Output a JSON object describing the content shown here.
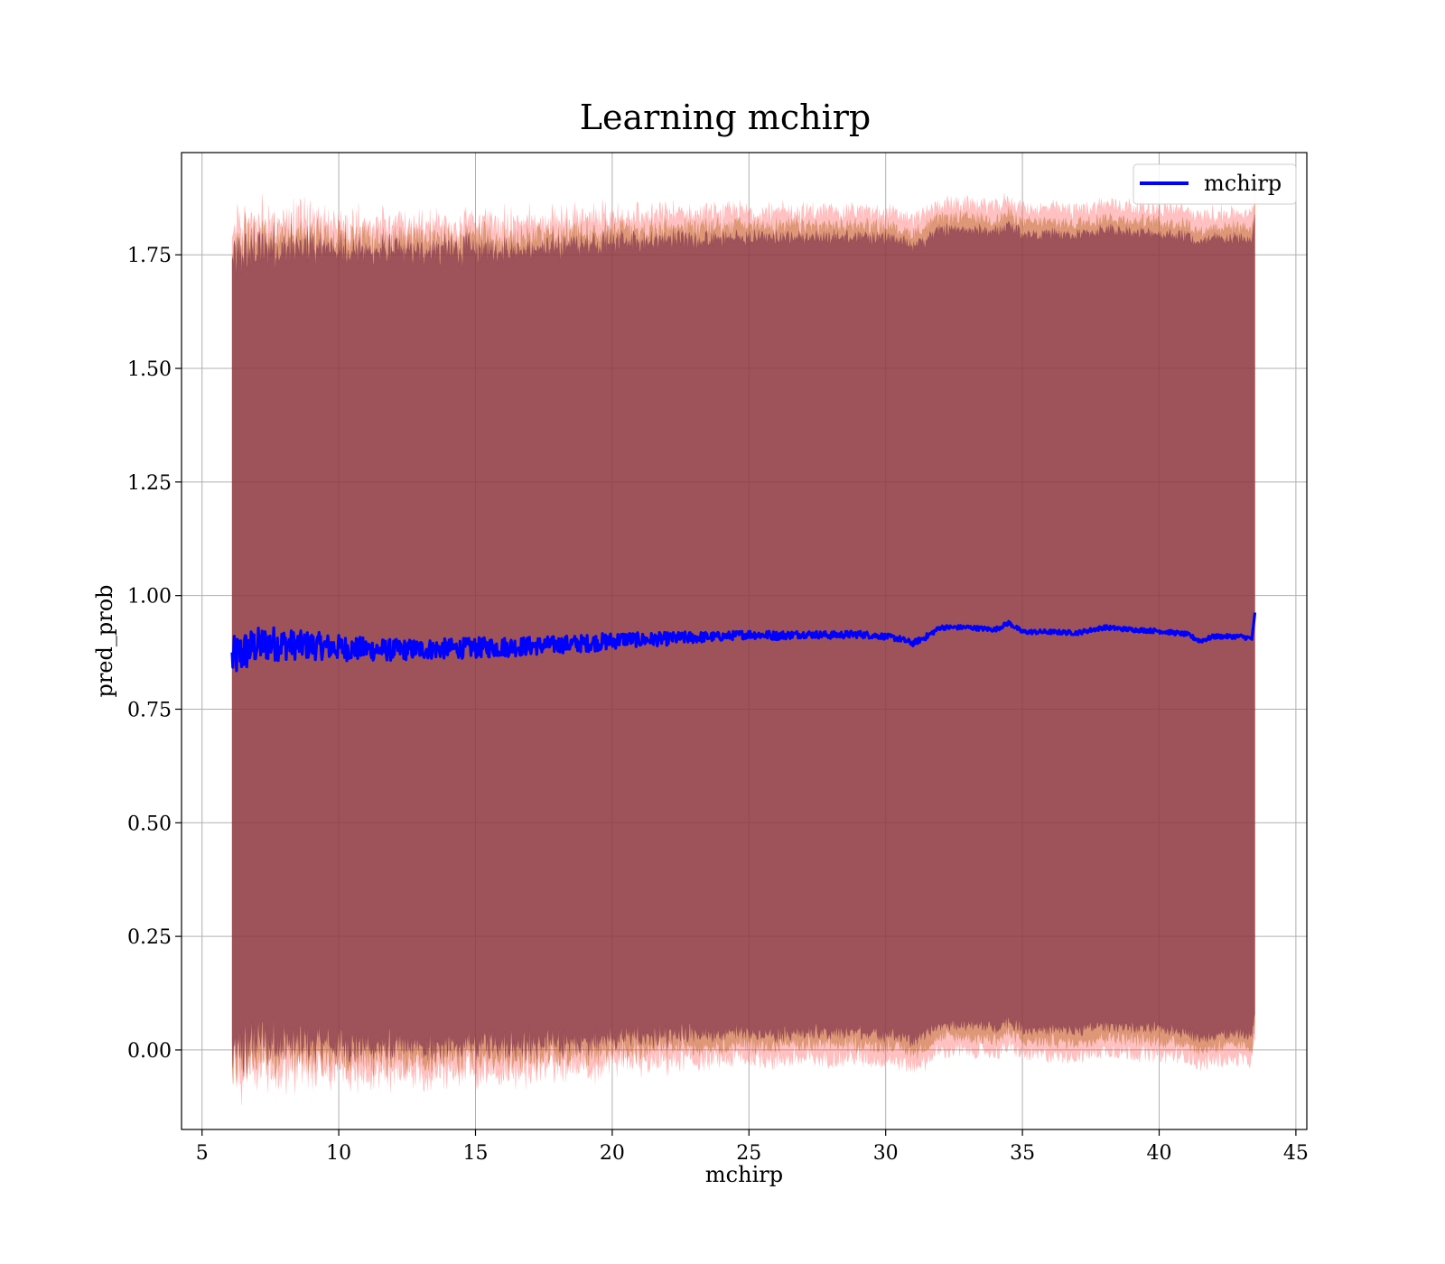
{
  "chart_data": {
    "type": "line",
    "title": "Learning mchirp",
    "xlabel": "mchirp",
    "ylabel": "pred_prob",
    "xlim": [
      4.25,
      45.4
    ],
    "ylim": [
      -0.175,
      1.975
    ],
    "xticks": [
      5,
      10,
      15,
      20,
      25,
      30,
      35,
      40,
      45
    ],
    "yticks": [
      0.0,
      0.25,
      0.5,
      0.75,
      1.0,
      1.25,
      1.5,
      1.75
    ],
    "ytick_labels": [
      "0.00",
      "0.25",
      "0.50",
      "0.75",
      "1.00",
      "1.25",
      "1.50",
      "1.75"
    ],
    "grid": true,
    "legend_position": "top-right",
    "colors": {
      "line": "#0000ff",
      "band_outer": "#ff4d4d",
      "band_mid": "#b5651d",
      "band_inner": "#7a2e4a",
      "grid": "#b0b0b0"
    },
    "series": [
      {
        "name": "mchirp",
        "x": [
          6.1,
          6.5,
          7.0,
          7.5,
          8.0,
          8.5,
          9.0,
          9.5,
          10.0,
          11.0,
          12.0,
          13.0,
          14.0,
          15.0,
          16.0,
          17.0,
          18.0,
          19.0,
          20.0,
          20.5,
          21.0,
          22.0,
          23.0,
          24.0,
          25.0,
          26.0,
          27.0,
          28.0,
          29.0,
          30.0,
          30.5,
          31.0,
          31.5,
          32.0,
          33.0,
          34.0,
          34.5,
          35.0,
          36.0,
          37.0,
          38.0,
          39.0,
          40.0,
          41.0,
          41.5,
          42.0,
          43.0,
          43.4,
          43.5
        ],
        "y": [
          0.86,
          0.875,
          0.89,
          0.895,
          0.893,
          0.891,
          0.89,
          0.888,
          0.885,
          0.882,
          0.88,
          0.882,
          0.883,
          0.885,
          0.887,
          0.889,
          0.892,
          0.895,
          0.9,
          0.905,
          0.902,
          0.905,
          0.908,
          0.91,
          0.915,
          0.912,
          0.915,
          0.913,
          0.915,
          0.91,
          0.905,
          0.895,
          0.91,
          0.93,
          0.93,
          0.925,
          0.94,
          0.92,
          0.92,
          0.918,
          0.93,
          0.925,
          0.922,
          0.915,
          0.9,
          0.91,
          0.91,
          0.905,
          0.96
        ],
        "noise": [
          0.03,
          0.03,
          0.025,
          0.025,
          0.022,
          0.02,
          0.02,
          0.018,
          0.018,
          0.016,
          0.015,
          0.014,
          0.014,
          0.014,
          0.014,
          0.013,
          0.012,
          0.012,
          0.012,
          0.01,
          0.01,
          0.009,
          0.008,
          0.006,
          0.006,
          0.006,
          0.005,
          0.005,
          0.005,
          0.004,
          0.004,
          0.004,
          0.004,
          0.003,
          0.003,
          0.003,
          0.003,
          0.003,
          0.003,
          0.003,
          0.003,
          0.003,
          0.003,
          0.003,
          0.003,
          0.003,
          0.003,
          0.003,
          0.003
        ]
      }
    ],
    "bands": [
      {
        "name": "band-outer",
        "half_width": 0.93,
        "jitter": 0.045,
        "opacity": 0.35
      },
      {
        "name": "band-mid",
        "half_width": 0.9,
        "jitter": 0.035,
        "opacity": 0.45
      },
      {
        "name": "band-inner",
        "half_width": 0.875,
        "jitter": 0.03,
        "opacity": 0.65
      }
    ]
  }
}
